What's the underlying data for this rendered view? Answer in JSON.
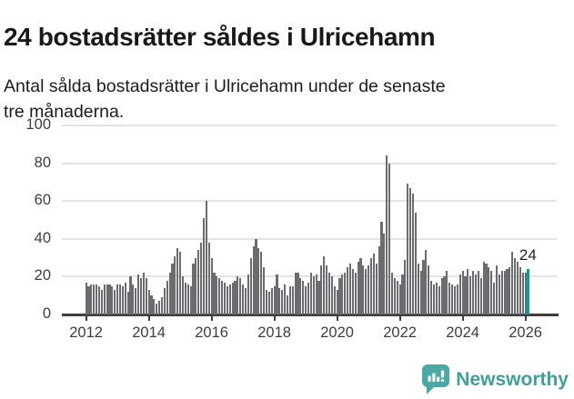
{
  "title": "24 bostadsrätter såldes i Ulricehamn",
  "subtitle_line1": "Antal sålda bostadsrätter i Ulricehamn under de senaste",
  "subtitle_line2": "tre månaderna.",
  "annotation_label": "24",
  "footer": {
    "brand": "Newsworthy"
  },
  "colors": {
    "bar": "#6b6b70",
    "highlight": "#00a1a1",
    "grid": "#e4e4e4",
    "axis": "#3f3f3f",
    "brand": "#3f9f9d",
    "logo": "#4aa9a4"
  },
  "chart_data": {
    "type": "bar",
    "title": "24 bostadsrätter såldes i Ulricehamn",
    "subtitle": "Antal sålda bostadsrätter i Ulricehamn under de senaste tre månaderna.",
    "x_start": "2012-01",
    "x_end": "2026-02",
    "x_frequency": "monthly",
    "ylim": [
      0,
      100
    ],
    "yticks": [
      0,
      20,
      40,
      60,
      80,
      100
    ],
    "xticks": [
      2012,
      2014,
      2016,
      2018,
      2020,
      2022,
      2024,
      2026
    ],
    "grid": true,
    "highlight_last": true,
    "last_value_label": "24",
    "values": [
      17,
      15,
      16,
      16,
      16,
      15,
      13,
      16,
      16,
      16,
      15,
      13,
      16,
      16,
      15,
      17,
      12,
      20,
      16,
      14,
      21,
      19,
      22,
      19,
      13,
      10,
      8,
      6,
      7,
      9,
      14,
      18,
      22,
      27,
      31,
      35,
      33,
      20,
      17,
      16,
      15,
      27,
      30,
      34,
      38,
      51,
      60,
      38,
      30,
      22,
      20,
      19,
      18,
      17,
      15,
      16,
      17,
      18,
      20,
      19,
      16,
      14,
      21,
      30,
      36,
      40,
      35,
      33,
      25,
      13,
      12,
      14,
      15,
      21,
      14,
      13,
      16,
      10,
      15,
      15,
      22,
      22,
      19,
      18,
      15,
      17,
      22,
      20,
      21,
      18,
      26,
      31,
      26,
      22,
      20,
      15,
      13,
      19,
      21,
      22,
      25,
      27,
      24,
      22,
      28,
      30,
      26,
      24,
      26,
      30,
      32,
      27,
      36,
      49,
      43,
      84,
      80,
      22,
      19,
      18,
      16,
      21,
      29,
      69,
      67,
      64,
      54,
      27,
      23,
      29,
      34,
      26,
      18,
      16,
      17,
      15,
      19,
      20,
      23,
      17,
      16,
      15,
      16,
      21,
      23,
      20,
      24,
      20,
      23,
      21,
      23,
      19,
      28,
      27,
      25,
      23,
      17,
      26,
      21,
      23,
      23,
      24,
      25,
      33,
      30,
      28,
      25,
      22,
      22,
      24
    ]
  }
}
